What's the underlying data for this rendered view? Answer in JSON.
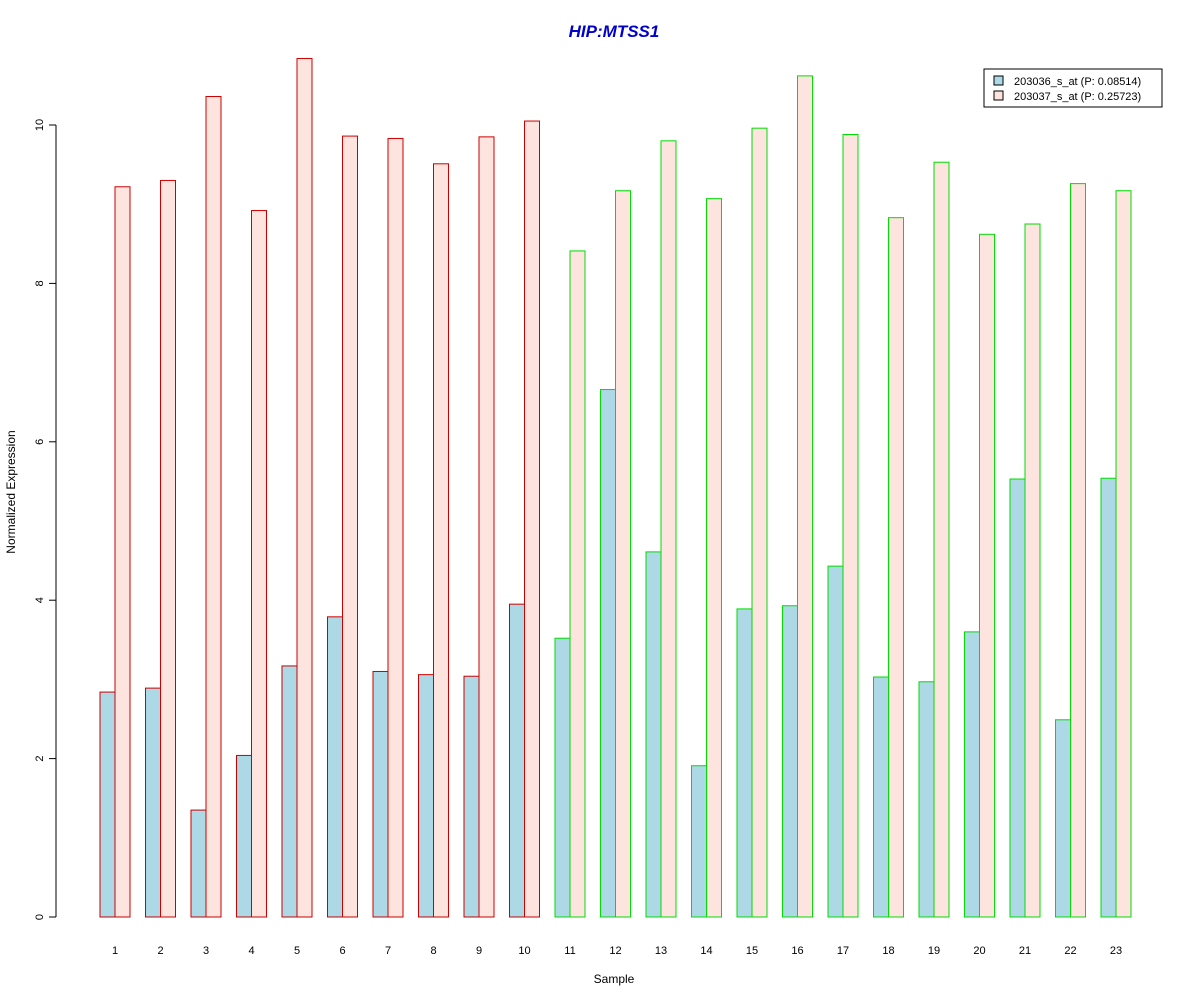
{
  "chart_data": {
    "type": "bar",
    "title": "HIP:MTSS1",
    "xlabel": "Sample",
    "ylabel": "Normalized Expression",
    "ylim": [
      0,
      10.8
    ],
    "yticks": [
      "0",
      "2",
      "4",
      "6",
      "8",
      "10"
    ],
    "categories": [
      "1",
      "2",
      "3",
      "4",
      "5",
      "6",
      "7",
      "8",
      "9",
      "10",
      "11",
      "12",
      "13",
      "14",
      "15",
      "16",
      "17",
      "18",
      "19",
      "20",
      "21",
      "22",
      "23"
    ],
    "group_border_colors": [
      "#cc0000",
      "#cc0000",
      "#cc0000",
      "#cc0000",
      "#cc0000",
      "#cc0000",
      "#cc0000",
      "#cc0000",
      "#cc0000",
      "#cc0000",
      "#00dd00",
      "#00dd00",
      "#00dd00",
      "#00dd00",
      "#00dd00",
      "#00dd00",
      "#00dd00",
      "#00dd00",
      "#00dd00",
      "#00dd00",
      "#00dd00",
      "#00dd00",
      "#00dd00"
    ],
    "series": [
      {
        "name": "203036_s_at (P: 0.08514)",
        "color": "#add8e6",
        "values": [
          2.84,
          2.89,
          1.35,
          2.04,
          3.17,
          3.79,
          3.1,
          3.06,
          3.04,
          3.95,
          3.52,
          6.66,
          4.61,
          1.91,
          3.89,
          3.93,
          4.43,
          3.03,
          2.97,
          3.6,
          5.53,
          2.49,
          5.54
        ]
      },
      {
        "name": "203037_s_at (P: 0.25723)",
        "color": "#fde4de",
        "values": [
          9.22,
          9.3,
          10.36,
          8.92,
          10.84,
          9.86,
          9.83,
          9.51,
          9.85,
          10.05,
          8.41,
          9.17,
          9.8,
          9.07,
          9.96,
          10.62,
          9.88,
          8.83,
          9.53,
          8.62,
          8.75,
          9.26,
          9.17
        ]
      }
    ],
    "legend_position": "top-right",
    "grid": false
  }
}
